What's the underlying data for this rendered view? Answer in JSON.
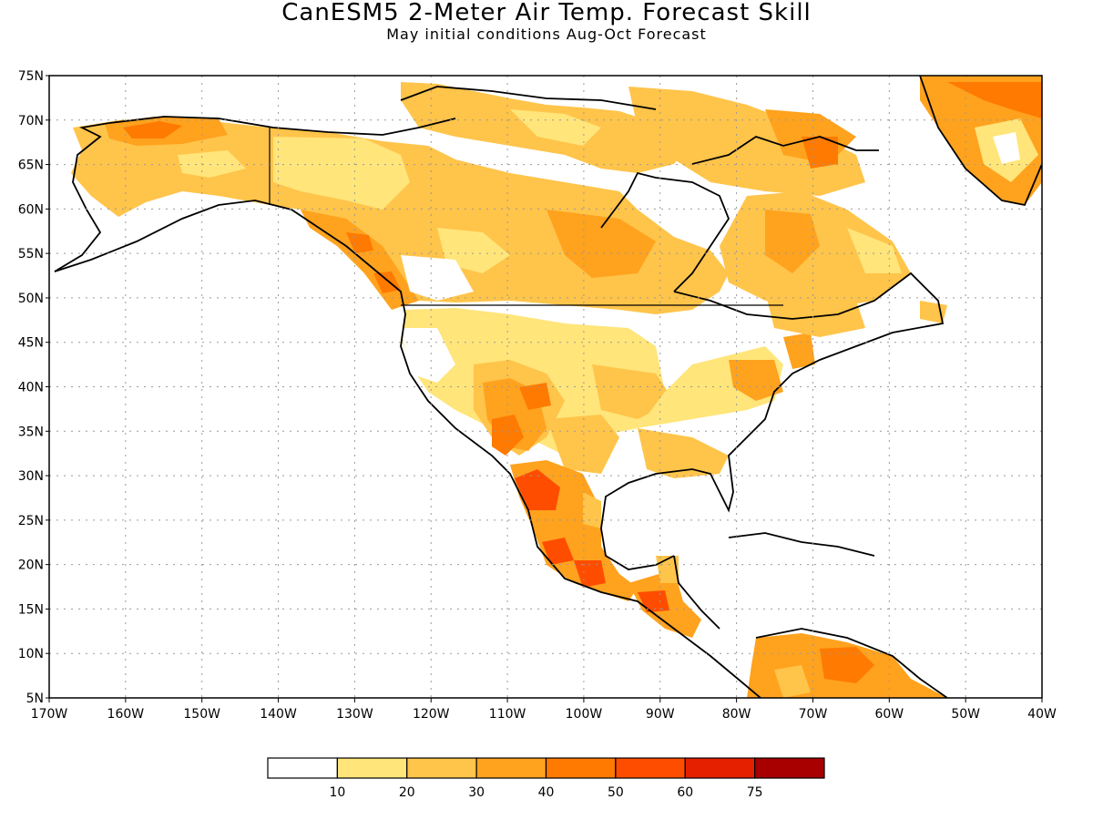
{
  "header": {
    "title": "CanESM5 2-Meter Air Temp. Forecast Skill",
    "subtitle": "May initial conditions  Aug-Oct Forecast"
  },
  "map": {
    "lon_range": [
      -170,
      -40
    ],
    "lat_range": [
      5,
      75
    ],
    "grid": "dotted",
    "lat_labels": [
      "5N",
      "10N",
      "15N",
      "20N",
      "25N",
      "30N",
      "35N",
      "40N",
      "45N",
      "50N",
      "55N",
      "60N",
      "65N",
      "70N",
      "75N"
    ],
    "lon_labels": [
      "170W",
      "160W",
      "150W",
      "140W",
      "130W",
      "120W",
      "110W",
      "100W",
      "90W",
      "80W",
      "70W",
      "60W",
      "50W",
      "40W"
    ]
  },
  "colorbar": {
    "labels": [
      "10",
      "20",
      "30",
      "40",
      "50",
      "60",
      "75"
    ],
    "colors": [
      "#ffffff",
      "#ffe57a",
      "#ffc44a",
      "#ffa21e",
      "#ff7a00",
      "#ff4d00",
      "#e52000",
      "#a80000"
    ]
  }
}
